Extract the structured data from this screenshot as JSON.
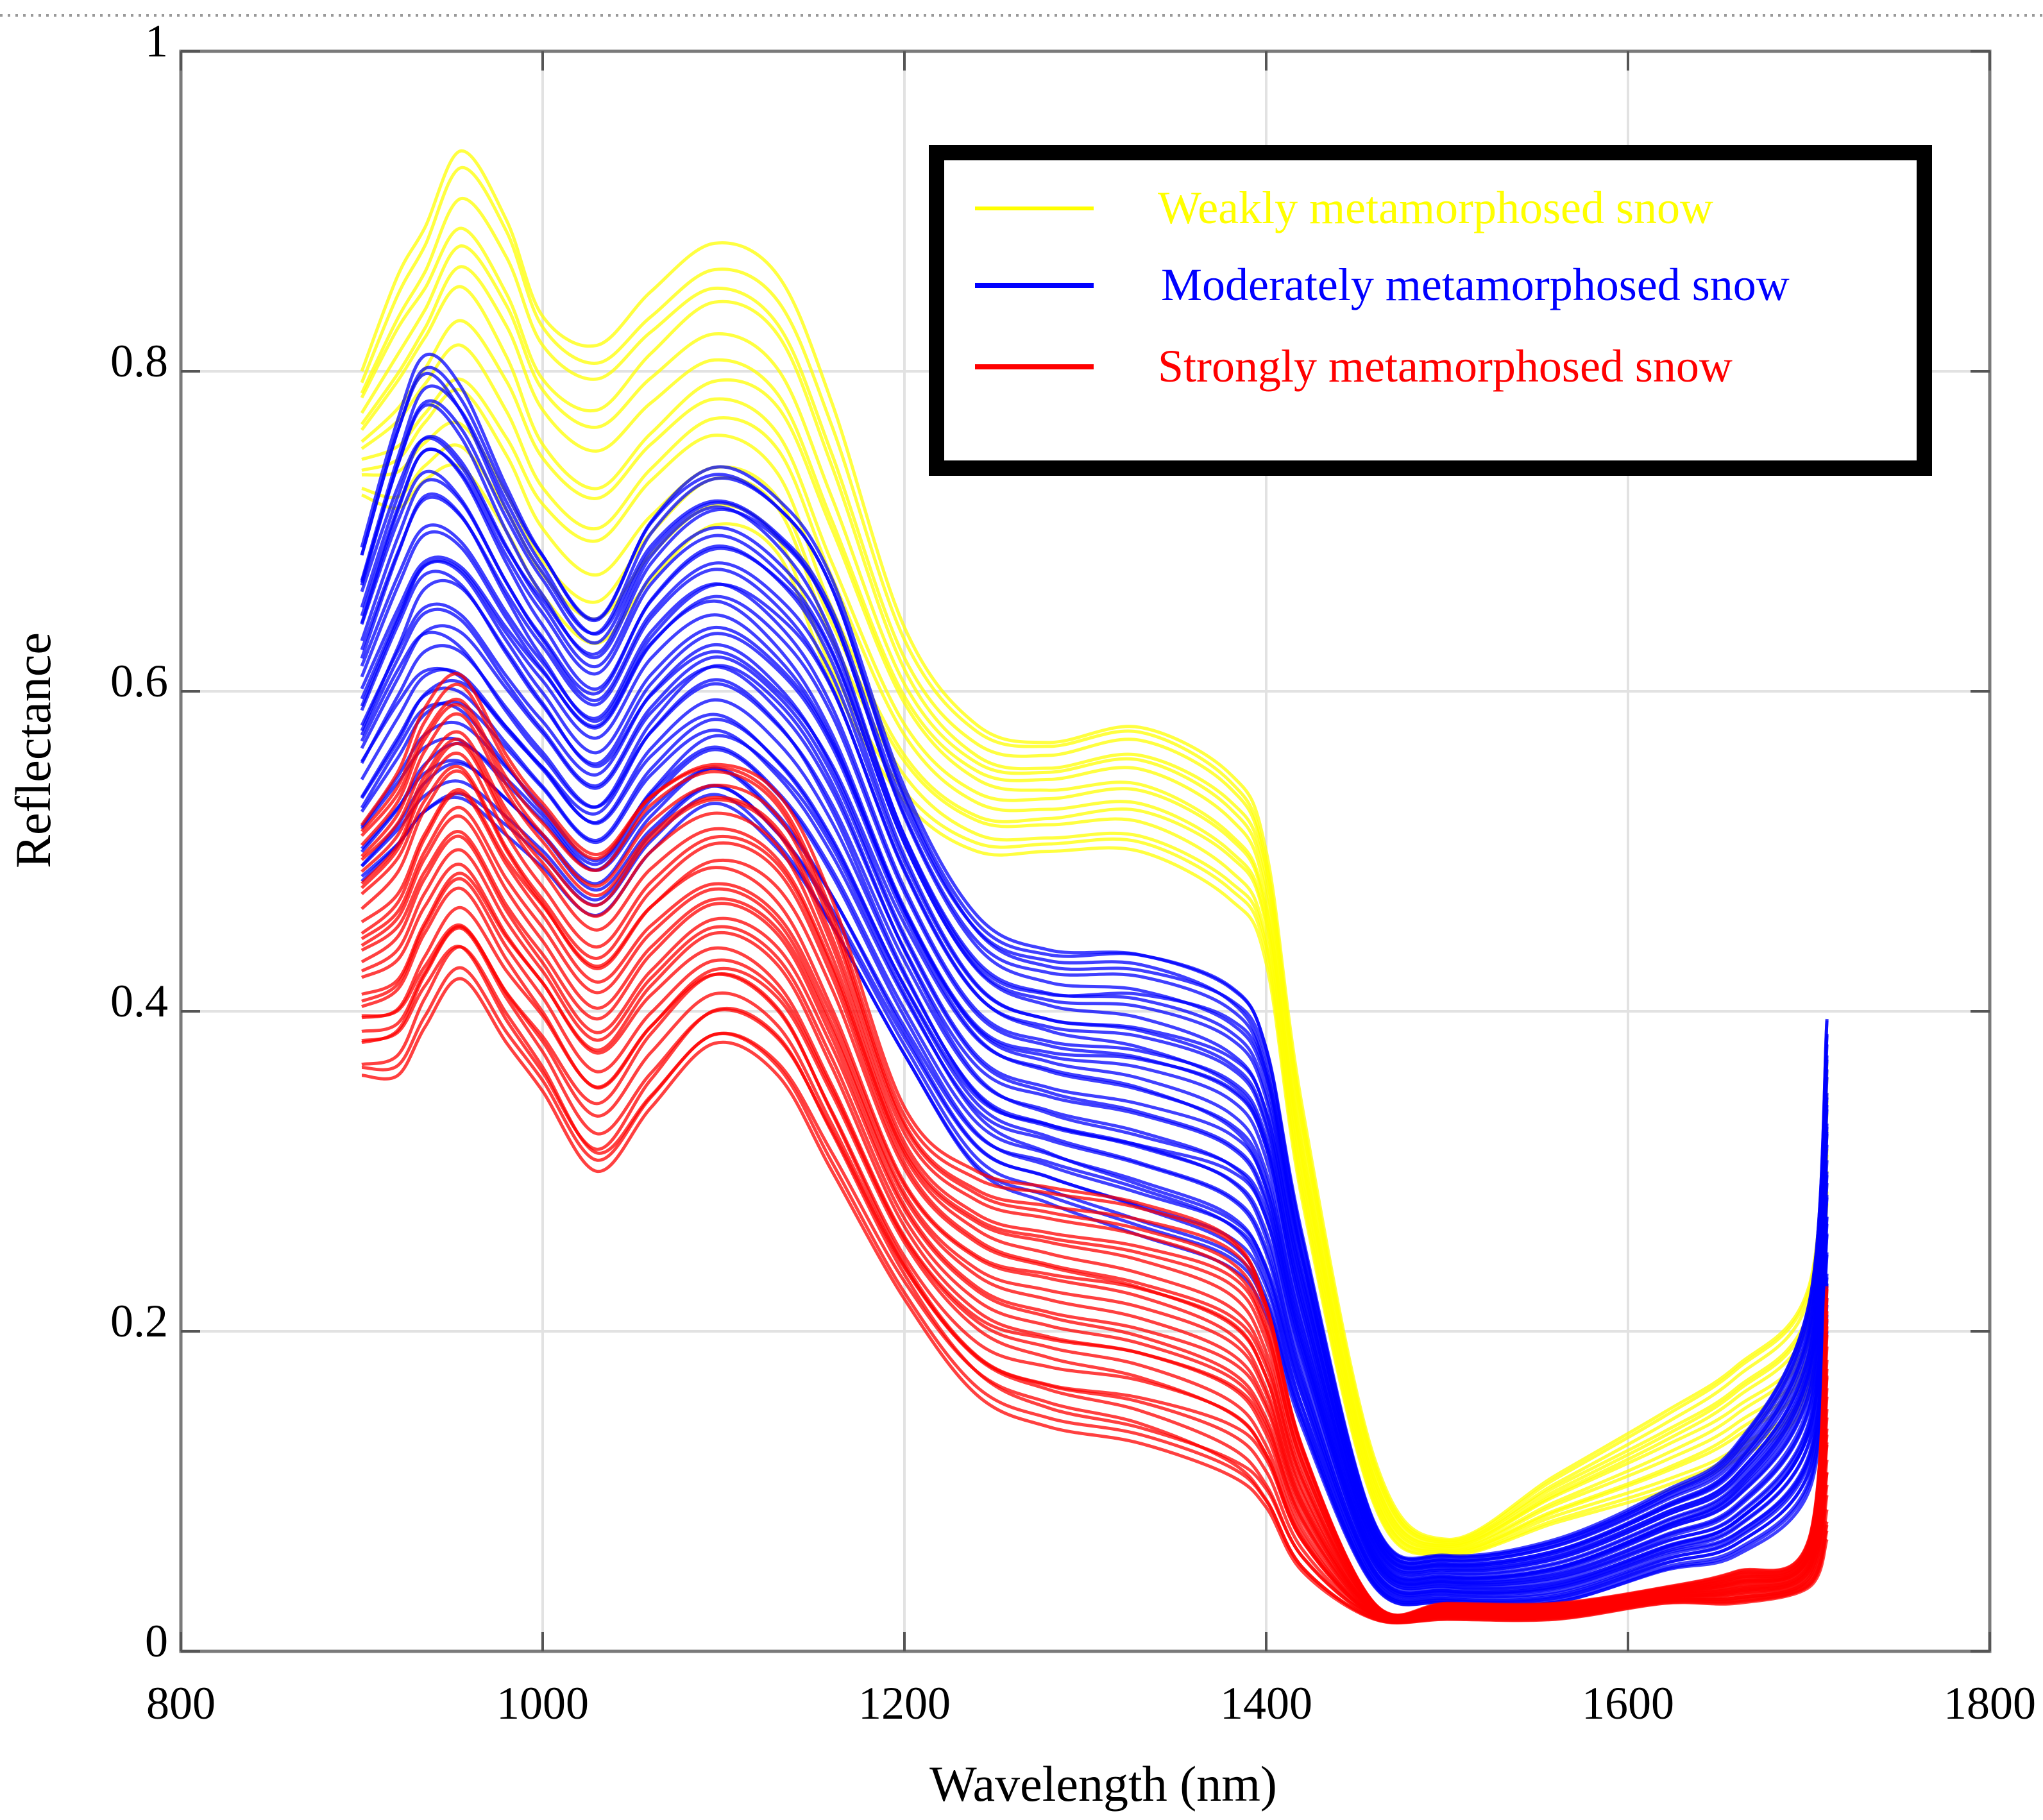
{
  "chart_data": {
    "type": "line",
    "title": "",
    "xlabel": "Wavelength (nm)",
    "ylabel": "Reflectance",
    "xlim": [
      800,
      1800
    ],
    "ylim": [
      0,
      1
    ],
    "x_ticks": [
      800,
      1000,
      1200,
      1400,
      1600,
      1800
    ],
    "x_tick_labels": [
      "800",
      "1000",
      "1200",
      "1400",
      "1600",
      "1800"
    ],
    "y_ticks": [
      0,
      0.2,
      0.4,
      0.6,
      0.8,
      1
    ],
    "y_tick_labels": [
      "0",
      "0.2",
      "0.4",
      "0.6",
      "0.8",
      "1"
    ],
    "grid": true,
    "legend_position": "top-right",
    "x": [
      900,
      920,
      935,
      955,
      980,
      1000,
      1030,
      1060,
      1095,
      1130,
      1160,
      1200,
      1240,
      1280,
      1330,
      1380,
      1400,
      1420,
      1460,
      1500,
      1560,
      1620,
      1660,
      1700,
      1710
    ],
    "series": [
      {
        "name": "Weakly metamorphosed snow",
        "color": "#ffff00",
        "n_curves": 14,
        "upper_values": [
          0.8,
          0.86,
          0.89,
          0.94,
          0.9,
          0.84,
          0.82,
          0.85,
          0.88,
          0.86,
          0.78,
          0.64,
          0.58,
          0.57,
          0.58,
          0.55,
          0.5,
          0.34,
          0.12,
          0.07,
          0.11,
          0.15,
          0.18,
          0.23,
          0.37
        ],
        "lower_values": [
          0.72,
          0.71,
          0.73,
          0.74,
          0.7,
          0.66,
          0.63,
          0.67,
          0.7,
          0.68,
          0.6,
          0.53,
          0.5,
          0.5,
          0.5,
          0.47,
          0.43,
          0.28,
          0.09,
          0.06,
          0.08,
          0.1,
          0.12,
          0.16,
          0.28
        ]
      },
      {
        "name": "Moderately metamorphosed snow",
        "color": "#0000ff",
        "n_curves": 40,
        "upper_values": [
          0.69,
          0.77,
          0.81,
          0.79,
          0.73,
          0.69,
          0.65,
          0.71,
          0.74,
          0.72,
          0.67,
          0.54,
          0.46,
          0.44,
          0.44,
          0.42,
          0.38,
          0.26,
          0.08,
          0.06,
          0.07,
          0.1,
          0.13,
          0.22,
          0.4
        ],
        "lower_values": [
          0.48,
          0.5,
          0.52,
          0.53,
          0.51,
          0.49,
          0.46,
          0.5,
          0.53,
          0.5,
          0.45,
          0.37,
          0.3,
          0.28,
          0.26,
          0.24,
          0.21,
          0.14,
          0.04,
          0.03,
          0.03,
          0.05,
          0.06,
          0.1,
          0.2
        ]
      },
      {
        "name": "Strongly metamorphosed snow",
        "color": "#ff0000",
        "n_curves": 30,
        "upper_values": [
          0.52,
          0.55,
          0.59,
          0.61,
          0.56,
          0.53,
          0.5,
          0.54,
          0.56,
          0.54,
          0.47,
          0.34,
          0.3,
          0.29,
          0.28,
          0.26,
          0.22,
          0.13,
          0.03,
          0.03,
          0.03,
          0.04,
          0.05,
          0.07,
          0.23
        ],
        "lower_values": [
          0.36,
          0.36,
          0.39,
          0.42,
          0.38,
          0.35,
          0.3,
          0.34,
          0.38,
          0.36,
          0.3,
          0.22,
          0.16,
          0.14,
          0.13,
          0.11,
          0.09,
          0.05,
          0.02,
          0.02,
          0.02,
          0.03,
          0.03,
          0.04,
          0.07
        ]
      }
    ]
  }
}
